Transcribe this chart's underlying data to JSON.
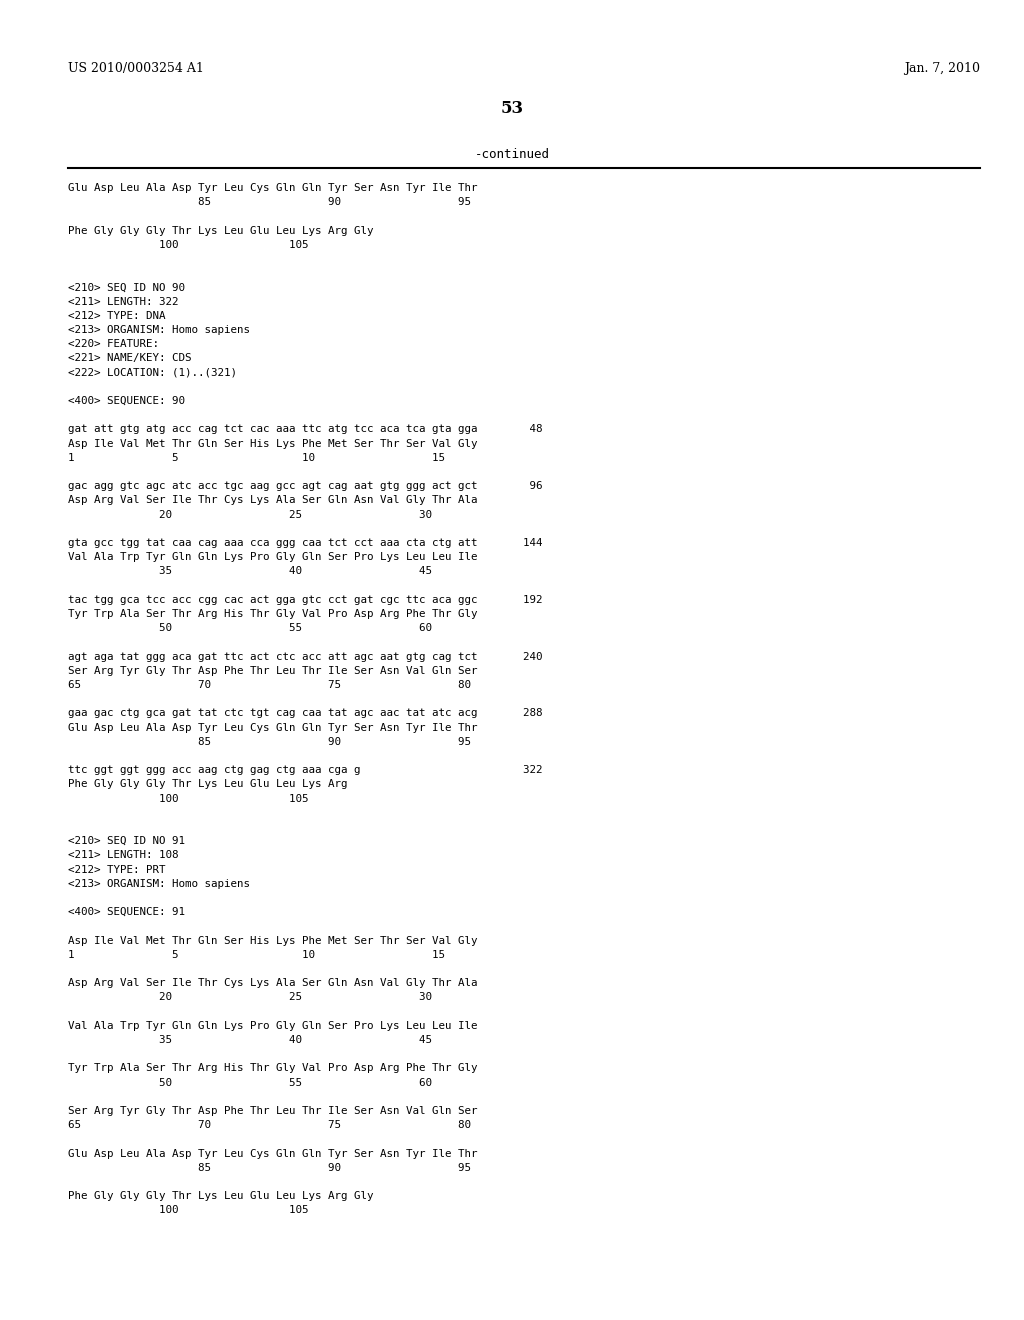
{
  "bg_color": "#ffffff",
  "header_left": "US 2010/0003254 A1",
  "header_right": "Jan. 7, 2010",
  "page_number": "53",
  "continued_label": "-continued",
  "content": [
    "Glu Asp Leu Ala Asp Tyr Leu Cys Gln Gln Tyr Ser Asn Tyr Ile Thr",
    "                    85                  90                  95",
    "",
    "Phe Gly Gly Gly Thr Lys Leu Glu Leu Lys Arg Gly",
    "              100                 105",
    "",
    "",
    "<210> SEQ ID NO 90",
    "<211> LENGTH: 322",
    "<212> TYPE: DNA",
    "<213> ORGANISM: Homo sapiens",
    "<220> FEATURE:",
    "<221> NAME/KEY: CDS",
    "<222> LOCATION: (1)..(321)",
    "",
    "<400> SEQUENCE: 90",
    "",
    "gat att gtg atg acc cag tct cac aaa ttc atg tcc aca tca gta gga        48",
    "Asp Ile Val Met Thr Gln Ser His Lys Phe Met Ser Thr Ser Val Gly",
    "1               5                   10                  15",
    "",
    "gac agg gtc agc atc acc tgc aag gcc agt cag aat gtg ggg act gct        96",
    "Asp Arg Val Ser Ile Thr Cys Lys Ala Ser Gln Asn Val Gly Thr Ala",
    "              20                  25                  30",
    "",
    "gta gcc tgg tat caa cag aaa cca ggg caa tct cct aaa cta ctg att       144",
    "Val Ala Trp Tyr Gln Gln Lys Pro Gly Gln Ser Pro Lys Leu Leu Ile",
    "              35                  40                  45",
    "",
    "tac tgg gca tcc acc cgg cac act gga gtc cct gat cgc ttc aca ggc       192",
    "Tyr Trp Ala Ser Thr Arg His Thr Gly Val Pro Asp Arg Phe Thr Gly",
    "              50                  55                  60",
    "",
    "agt aga tat ggg aca gat ttc act ctc acc att agc aat gtg cag tct       240",
    "Ser Arg Tyr Gly Thr Asp Phe Thr Leu Thr Ile Ser Asn Val Gln Ser",
    "65                  70                  75                  80",
    "",
    "gaa gac ctg gca gat tat ctc tgt cag caa tat agc aac tat atc acg       288",
    "Glu Asp Leu Ala Asp Tyr Leu Cys Gln Gln Tyr Ser Asn Tyr Ile Thr",
    "                    85                  90                  95",
    "",
    "ttc ggt ggt ggg acc aag ctg gag ctg aaa cga g                         322",
    "Phe Gly Gly Gly Thr Lys Leu Glu Leu Lys Arg",
    "              100                 105",
    "",
    "",
    "<210> SEQ ID NO 91",
    "<211> LENGTH: 108",
    "<212> TYPE: PRT",
    "<213> ORGANISM: Homo sapiens",
    "",
    "<400> SEQUENCE: 91",
    "",
    "Asp Ile Val Met Thr Gln Ser His Lys Phe Met Ser Thr Ser Val Gly",
    "1               5                   10                  15",
    "",
    "Asp Arg Val Ser Ile Thr Cys Lys Ala Ser Gln Asn Val Gly Thr Ala",
    "              20                  25                  30",
    "",
    "Val Ala Trp Tyr Gln Gln Lys Pro Gly Gln Ser Pro Lys Leu Leu Ile",
    "              35                  40                  45",
    "",
    "Tyr Trp Ala Ser Thr Arg His Thr Gly Val Pro Asp Arg Phe Thr Gly",
    "              50                  55                  60",
    "",
    "Ser Arg Tyr Gly Thr Asp Phe Thr Leu Thr Ile Ser Asn Val Gln Ser",
    "65                  70                  75                  80",
    "",
    "Glu Asp Leu Ala Asp Tyr Leu Cys Gln Gln Tyr Ser Asn Tyr Ile Thr",
    "                    85                  90                  95",
    "",
    "Phe Gly Gly Gly Thr Lys Leu Glu Leu Lys Arg Gly",
    "              100                 105"
  ]
}
